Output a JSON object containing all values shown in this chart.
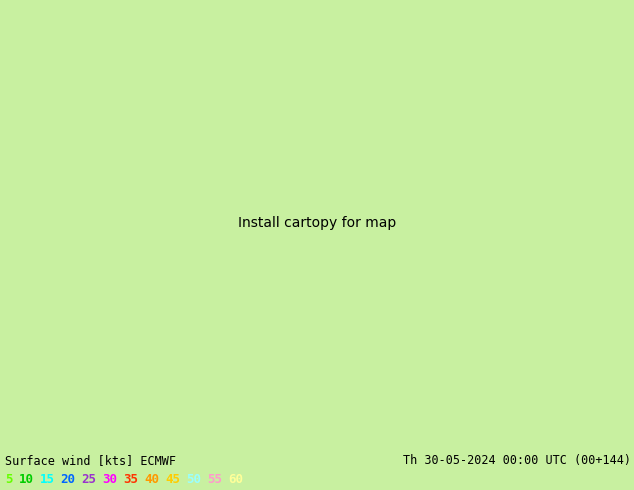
{
  "title_left": "Surface wind [kts] ECMWF",
  "title_right": "Th 30-05-2024 00:00 UTC (00+144)",
  "legend_values": [
    "5",
    "10",
    "15",
    "20",
    "25",
    "30",
    "35",
    "40",
    "45",
    "50",
    "55",
    "60"
  ],
  "legend_colors": [
    "#66ff00",
    "#00cc00",
    "#00ffff",
    "#0066ff",
    "#9933cc",
    "#ff00ff",
    "#ff3300",
    "#ff9900",
    "#ffcc00",
    "#99ffff",
    "#ff99cc",
    "#ffff99"
  ],
  "bottom_bar_color": "#c8f0a0",
  "map_colors": [
    "#00cc00",
    "#66dd00",
    "#aaee00",
    "#ffff00",
    "#ffdd44",
    "#ffbb00",
    "#ff8800",
    "#ff4400",
    "#ff00aa",
    "#cc00ff",
    "#0088ff",
    "#00ccff"
  ],
  "wind_levels": [
    5,
    10,
    15,
    20,
    25,
    30,
    35,
    40,
    45,
    50,
    55,
    60,
    65
  ],
  "figsize": [
    6.34,
    4.9
  ],
  "dpi": 100,
  "map_extent": [
    -130,
    -60,
    22,
    52
  ],
  "seed": 42
}
